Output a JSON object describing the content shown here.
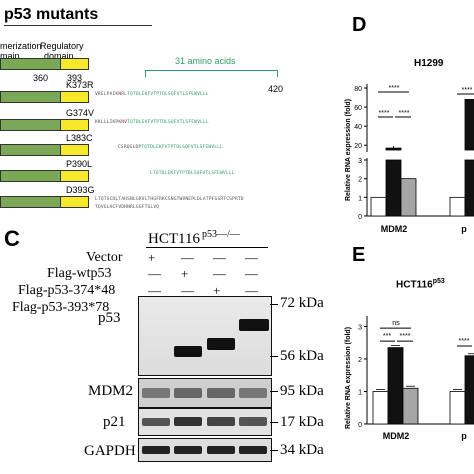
{
  "panel_b": {
    "title": "p53 mutants",
    "domain_label_1": "merization",
    "domain_label_1b": "main",
    "domain_label_2": "Regulatory",
    "domain_label_2b": "domain",
    "pos_360": "360",
    "pos_393": "393",
    "pos_420": "420",
    "amino_label": "31 amino acids",
    "mutants": [
      {
        "name": "K373R",
        "seq_grey": "VRELPAIKN",
        "seq_red": "R",
        "seq_green": "LTQTDLEKFVTPTDLSQFVTLSFEWVLLL"
      },
      {
        "name": "G374V",
        "seq_grey": "KKLLLIKPKN",
        "seq_red": "V",
        "seq_green": "TQTDLEKFVTPTDLSQFVTLSFEWVLLL"
      },
      {
        "name": "L383C",
        "seq_grey": "CSRQGLDP",
        "seq_red": "",
        "seq_green": "TQTDLEKFVTPTDLSQFVTLSFEWVLLL"
      },
      {
        "name": "P390L",
        "seq_grey": "",
        "seq_red": "",
        "seq_green": "LTQTDLEKFVTPTDLSQFVTLSFEWVLLL"
      },
      {
        "name": "D393G",
        "seq_grey": "LTQTSCDLTAHSNLGRVLTHGFRKCSNGTWVNEPLDLATPFGSRTCSPRTD",
        "seq_red": "",
        "seq_green": "",
        "seq_grey2": "TQVGLHCFVDHNRLGGFTGLVQ"
      }
    ]
  },
  "panel_c": {
    "letter": "C",
    "cell_line": "HCT116",
    "cell_sup": "p53—/—",
    "row_labels": [
      "Vector",
      "Flag-wtp53",
      "Flag-p53-374*48",
      "Flag-p53-393*78"
    ],
    "signs": [
      [
        "+",
        "—",
        "—",
        "—"
      ],
      [
        "—",
        "+",
        "—",
        "—"
      ],
      [
        "—",
        "—",
        "+",
        "—"
      ],
      [
        "—",
        "—",
        "—",
        "+"
      ]
    ],
    "blots": [
      "p53",
      "MDM2",
      "p21",
      "GAPDH"
    ],
    "markers": [
      "72 kDa",
      "56 kDa",
      "95 kDa",
      "17 kDa",
      "34 kDa"
    ]
  },
  "panel_d": {
    "letter": "D",
    "chart_data": {
      "type": "bar",
      "title": "H1299",
      "ylabel": "Relative RNA expression (fold)",
      "categories": [
        "MDM2",
        "p"
      ],
      "yticks_top": [
        "20",
        "40",
        "60",
        "80"
      ],
      "yticks_bottom": [
        "0",
        "1",
        "2",
        "3"
      ],
      "series": [
        {
          "values": [
            1.0,
            1.0
          ]
        },
        {
          "values": [
            17,
            null
          ]
        },
        {
          "values": [
            2.0,
            null
          ]
        },
        {
          "values": [
            null,
            68
          ]
        }
      ],
      "significance": [
        "****",
        "****",
        "****",
        "****"
      ]
    }
  },
  "panel_e": {
    "letter": "E",
    "chart_data": {
      "type": "bar",
      "title": "HCT116",
      "title_sup": "p53",
      "ylabel": "Relative RNA expression (fold)",
      "categories": [
        "MDM2",
        "p"
      ],
      "yticks": [
        "0",
        "1",
        "2",
        "3"
      ],
      "ylim": [
        0,
        3.2
      ],
      "series": [
        {
          "values": [
            1.0,
            1.0
          ]
        },
        {
          "values": [
            2.35,
            2.1
          ]
        },
        {
          "values": [
            1.1,
            null
          ]
        }
      ],
      "significance": [
        "***",
        "ns",
        "****",
        "****"
      ]
    }
  },
  "colors": {
    "green": "#7aa857",
    "yellow": "#f5e92a",
    "seq_green": "#2e9e63",
    "bar_black": "#111111",
    "bar_grey": "#a6a6a6"
  }
}
